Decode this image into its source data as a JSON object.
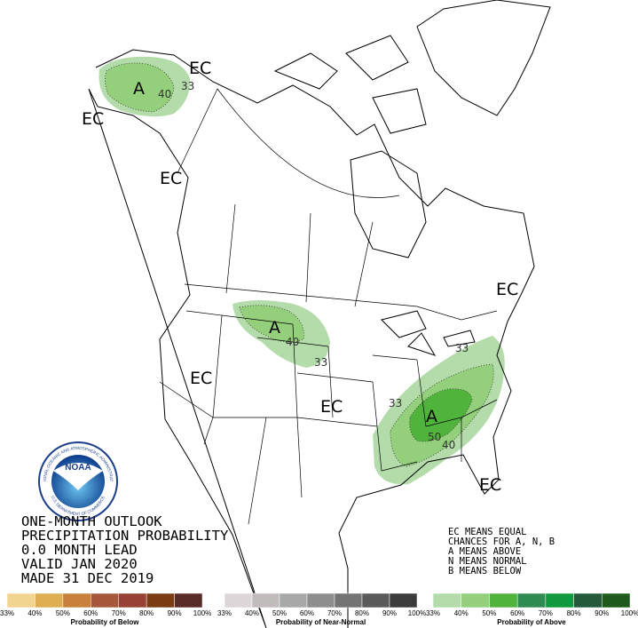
{
  "header": {
    "lines": [
      "ONE-MONTH OUTLOOK",
      "PRECIPITATION PROBABILITY",
      "0.0 MONTH LEAD",
      "VALID JAN 2020",
      "MADE 31 DEC 2019"
    ]
  },
  "key": {
    "lines": [
      "EC MEANS EQUAL",
      "CHANCES FOR A, N, B",
      "A MEANS ABOVE",
      "N MEANS NORMAL",
      "B MEANS BELOW"
    ]
  },
  "map": {
    "labels": [
      "EC",
      "A",
      "40",
      "33",
      "EC",
      "EC",
      "A",
      "40",
      "33",
      "EC",
      "EC",
      "33",
      "A",
      "50",
      "40",
      "33",
      "EC",
      "EC"
    ]
  },
  "logo": {
    "name": "NOAA",
    "ring_top": "NATIONAL OCEANIC AND ATMOSPHERIC ADMINISTRATION",
    "ring_bottom": "U.S. DEPARTMENT OF COMMERCE"
  },
  "legend": {
    "groups": [
      {
        "title": "Probability of Below",
        "colors": [
          "#f2d491",
          "#deae52",
          "#c8803a",
          "#a8583a",
          "#984236",
          "#7a3c10",
          "#582a28"
        ],
        "ticks": [
          "33%",
          "40%",
          "50%",
          "60%",
          "70%",
          "80%",
          "90%",
          "100%"
        ]
      },
      {
        "title": "Probability of Near-Normal",
        "colors": [
          "#dcd6d8",
          "#c0bcbc",
          "#a8a8a8",
          "#8e8e8e",
          "#747474",
          "#5a5a5a",
          "#3c3c3c"
        ],
        "ticks": [
          "33%",
          "40%",
          "50%",
          "60%",
          "70%",
          "80%",
          "90%",
          "100%"
        ]
      },
      {
        "title": "Probability of Above",
        "colors": [
          "#b4dcaa",
          "#94d07c",
          "#50b43c",
          "#2e8c50",
          "#12983e",
          "#24593a",
          "#1e5a1c"
        ],
        "ticks": [
          "33%",
          "40%",
          "50%",
          "60%",
          "70%",
          "80%",
          "90%",
          "100%"
        ]
      }
    ]
  }
}
